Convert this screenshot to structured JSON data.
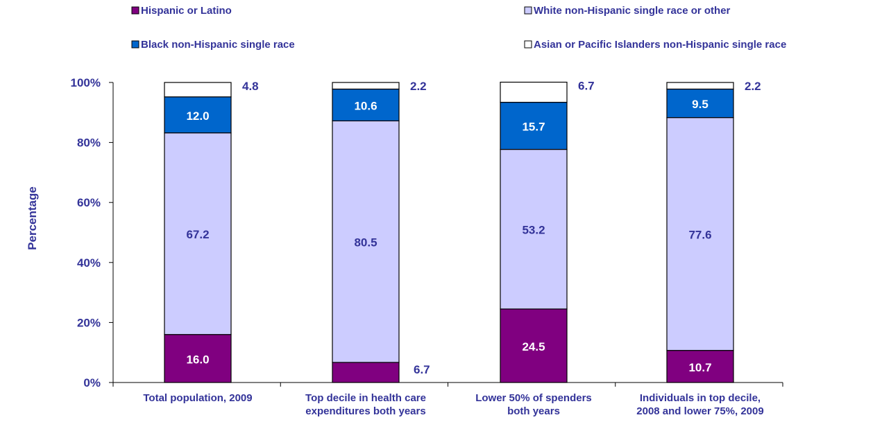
{
  "chart_data": {
    "type": "bar",
    "stacked": true,
    "title": "",
    "xlabel": "",
    "ylabel": "Percentage",
    "ylim": [
      0,
      100
    ],
    "yticks": [
      "0%",
      "20%",
      "40%",
      "60%",
      "80%",
      "100%"
    ],
    "legend_position": "top",
    "grid": false,
    "categories": [
      [
        "Total population, 2009"
      ],
      [
        "Top decile in health care",
        "expenditures both years"
      ],
      [
        "Lower 50% of spenders",
        "both years"
      ],
      [
        "Individuals in top decile,",
        "2008 and lower 75%, 2009"
      ]
    ],
    "series": [
      {
        "name": "Hispanic or Latino",
        "color": "#800080",
        "values": [
          16.0,
          6.7,
          24.5,
          10.7
        ],
        "labels": [
          "16.0",
          "6.7",
          "24.5",
          "10.7"
        ]
      },
      {
        "name": "White non-Hispanic single race or other",
        "color": "#ccccff",
        "values": [
          67.2,
          80.5,
          53.2,
          77.6
        ],
        "labels": [
          "67.2",
          "80.5",
          "53.2",
          "77.6"
        ]
      },
      {
        "name": "Black non-Hispanic single race",
        "color": "#0066cc",
        "values": [
          12.0,
          10.6,
          15.7,
          9.5
        ],
        "labels": [
          "12.0",
          "10.6",
          "15.7",
          "9.5"
        ]
      },
      {
        "name": "Asian or Pacific Islanders non-Hispanic single race",
        "color": "#ffffff",
        "values": [
          4.8,
          2.2,
          6.7,
          2.2
        ],
        "labels": [
          "4.8",
          "2.2",
          "6.7",
          "2.2"
        ]
      }
    ]
  },
  "colors": {
    "axis_text": "#333399",
    "label_dark": "#ffffff",
    "label_light": "#333399",
    "bar_outline": "#000000"
  }
}
